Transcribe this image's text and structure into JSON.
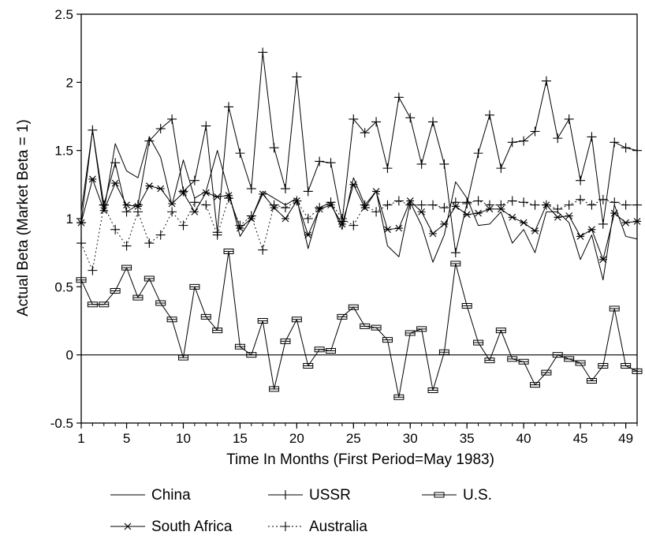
{
  "chart_data": {
    "type": "line",
    "title": "",
    "xlabel": "Time In Months (First Period=May 1983)",
    "ylabel": "Actual Beta (Market Beta = 1)",
    "xlim": [
      1,
      50
    ],
    "ylim": [
      -0.5,
      2.5
    ],
    "x_ticks": [
      1,
      5,
      10,
      15,
      20,
      25,
      30,
      35,
      40,
      45,
      49
    ],
    "y_ticks": [
      -0.5,
      0,
      0.5,
      1,
      1.5,
      2,
      2.5
    ],
    "y_tick_labels": [
      "-0.5",
      "0",
      "0.5",
      "1",
      "1.5",
      "2",
      "2.5"
    ],
    "grid": false,
    "reference_line": 0,
    "legend_position": "bottom",
    "x": [
      1,
      2,
      3,
      4,
      5,
      6,
      7,
      8,
      9,
      10,
      11,
      12,
      13,
      14,
      15,
      16,
      17,
      18,
      19,
      20,
      21,
      22,
      23,
      24,
      25,
      26,
      27,
      28,
      29,
      30,
      31,
      32,
      33,
      34,
      35,
      36,
      37,
      38,
      39,
      40,
      41,
      42,
      43,
      44,
      45,
      46,
      47,
      48,
      49,
      50
    ],
    "series": [
      {
        "name": "China",
        "marker": "none",
        "dash": "",
        "values": [
          1.05,
          1.65,
          1.05,
          1.55,
          1.35,
          1.3,
          1.6,
          1.45,
          1.1,
          1.43,
          1.15,
          1.2,
          1.5,
          1.2,
          0.87,
          1.0,
          1.2,
          1.15,
          1.1,
          1.15,
          0.78,
          1.08,
          1.12,
          0.92,
          1.3,
          1.1,
          1.2,
          0.8,
          0.72,
          1.12,
          0.95,
          0.68,
          0.88,
          1.27,
          1.15,
          0.95,
          0.96,
          1.05,
          0.82,
          0.92,
          0.75,
          1.05,
          1.05,
          0.97,
          0.7,
          0.88,
          0.55,
          1.1,
          0.87,
          0.85
        ]
      },
      {
        "name": "USSR",
        "marker": "plus",
        "dash": "",
        "values": [
          0.97,
          1.65,
          1.1,
          1.41,
          1.05,
          1.1,
          1.57,
          1.66,
          1.73,
          1.2,
          1.28,
          1.68,
          0.9,
          1.82,
          1.48,
          1.22,
          2.22,
          1.52,
          1.22,
          2.04,
          1.2,
          1.42,
          1.41,
          0.98,
          1.73,
          1.63,
          1.71,
          1.37,
          1.89,
          1.74,
          1.4,
          1.71,
          1.4,
          0.75,
          1.11,
          1.48,
          1.76,
          1.37,
          1.56,
          1.57,
          1.64,
          2.01,
          1.59,
          1.73,
          1.28,
          1.6,
          0.96,
          1.56,
          1.52,
          1.5
        ]
      },
      {
        "name": "U.S.",
        "marker": "square",
        "dash": "",
        "values": [
          0.55,
          0.37,
          0.37,
          0.47,
          0.64,
          0.42,
          0.56,
          0.38,
          0.26,
          -0.02,
          0.5,
          0.28,
          0.18,
          0.76,
          0.06,
          0.0,
          0.25,
          -0.25,
          0.1,
          0.26,
          -0.08,
          0.04,
          0.03,
          0.28,
          0.35,
          0.21,
          0.2,
          0.11,
          -0.31,
          0.16,
          0.19,
          -0.26,
          0.02,
          0.67,
          0.36,
          0.09,
          -0.04,
          0.18,
          -0.03,
          -0.05,
          -0.22,
          -0.13,
          0.0,
          -0.03,
          -0.06,
          -0.19,
          -0.08,
          0.34,
          -0.08,
          -0.12
        ]
      },
      {
        "name": "South Africa",
        "marker": "star",
        "dash": "",
        "values": [
          0.97,
          1.29,
          1.06,
          1.26,
          1.1,
          1.09,
          1.24,
          1.22,
          1.11,
          1.19,
          1.05,
          1.19,
          1.16,
          1.17,
          0.93,
          1.0,
          1.18,
          1.08,
          1.0,
          1.13,
          0.88,
          1.07,
          1.1,
          0.96,
          1.25,
          1.08,
          1.2,
          0.92,
          0.93,
          1.13,
          1.05,
          0.89,
          0.96,
          1.09,
          1.03,
          1.04,
          1.07,
          1.07,
          1.01,
          0.97,
          0.91,
          1.1,
          1.01,
          1.02,
          0.87,
          0.92,
          0.7,
          1.04,
          0.97,
          0.98
        ]
      },
      {
        "name": "Australia",
        "marker": "plus",
        "dash": "2 3",
        "values": [
          0.82,
          0.62,
          1.1,
          0.92,
          0.8,
          1.05,
          0.82,
          0.88,
          1.05,
          0.95,
          1.12,
          1.1,
          0.88,
          1.15,
          0.95,
          1.02,
          0.77,
          1.1,
          1.08,
          1.13,
          1.0,
          1.08,
          1.12,
          1.0,
          0.95,
          1.1,
          1.05,
          1.1,
          1.13,
          1.1,
          1.1,
          1.1,
          1.08,
          1.12,
          1.12,
          1.13,
          1.1,
          1.1,
          1.13,
          1.12,
          1.1,
          1.1,
          1.07,
          1.1,
          1.14,
          1.1,
          1.14,
          1.12,
          1.1,
          1.1
        ]
      }
    ]
  }
}
